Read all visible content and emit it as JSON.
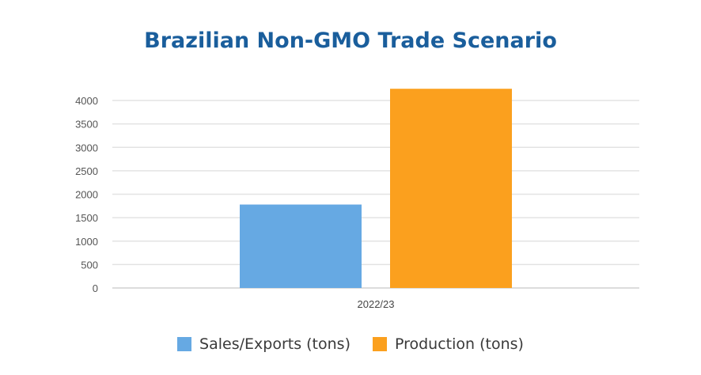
{
  "chart_data": {
    "type": "bar",
    "title": "Brazilian Non-GMO Trade Scenario",
    "categories": [
      "2022/23"
    ],
    "series": [
      {
        "name": "Sales/Exports (tons)",
        "values": [
          1780
        ],
        "color": "#66a9e3"
      },
      {
        "name": "Production (tons)",
        "values": [
          4250
        ],
        "color": "#fba01e"
      }
    ],
    "yticks": [
      0,
      500,
      1000,
      1500,
      2000,
      2500,
      3000,
      3500,
      4000
    ],
    "ylim": [
      0,
      4250
    ],
    "grid": true,
    "legend_position": "bottom",
    "title_color": "#1a5e9c"
  }
}
